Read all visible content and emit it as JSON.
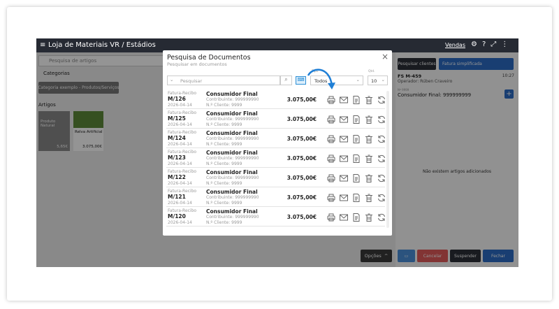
{
  "header": {
    "title": "Loja de Materiais VR / Estádios",
    "menu_active": "Vendas"
  },
  "left_panel": {
    "search_placeholder": "Pesquisa de artigos",
    "categories_label": "Categorias",
    "category": "Categoria exemplo - Produtos/Serviços",
    "articles_label": "Artigos",
    "articles": [
      {
        "name": "Produto Natural",
        "price": "5,65€"
      },
      {
        "name": "Relva Artificial",
        "price": "3.075,00€"
      }
    ]
  },
  "right_panel": {
    "search_clients": "Pesquisar clientes",
    "doc_type": "Fatura simplificada",
    "doc_number": "FS M-459",
    "time": "10:27",
    "operator": "Operador: Rúben Craveiro",
    "client_label": "Nº 9999",
    "client": "Consumidor Final: 999999999",
    "empty": "Não existem artigos adicionados",
    "cancel": "Cancelar",
    "suspend": "Suspender",
    "close": "Fechar"
  },
  "options_button": "Opções",
  "modal": {
    "title": "Pesquisa de Documentos",
    "subtitle": "Pesquisar em documentos",
    "search_placeholder": "Pesquisar",
    "type_label": "Tipo",
    "type_value": "Todos",
    "qty_label": "Qtd.",
    "qty_value": "10",
    "documents": [
      {
        "type": "Fatura-Recibo",
        "number": "M/126",
        "date": "2026-04-14",
        "customer": "Consumidor Final",
        "tax_id": "Contribuinte: 999999990",
        "client_no": "N.º Cliente: 9999",
        "amount": "3.075,00€"
      },
      {
        "type": "Fatura-Recibo",
        "number": "M/125",
        "date": "2026-04-14",
        "customer": "Consumidor Final",
        "tax_id": "Contribuinte: 999999990",
        "client_no": "N.º Cliente: 9999",
        "amount": "3.075,00€"
      },
      {
        "type": "Fatura-Recibo",
        "number": "M/124",
        "date": "2026-04-14",
        "customer": "Consumidor Final",
        "tax_id": "Contribuinte: 999999990",
        "client_no": "N.º Cliente: 9999",
        "amount": "3.075,00€"
      },
      {
        "type": "Fatura-Recibo",
        "number": "M/123",
        "date": "2026-04-14",
        "customer": "Consumidor Final",
        "tax_id": "Contribuinte: 999999990",
        "client_no": "N.º Cliente: 9999",
        "amount": "3.075,00€"
      },
      {
        "type": "Fatura-Recibo",
        "number": "M/122",
        "date": "2026-04-14",
        "customer": "Consumidor Final",
        "tax_id": "Contribuinte: 999999990",
        "client_no": "N.º Cliente: 9999",
        "amount": "3.075,00€"
      },
      {
        "type": "Fatura-Recibo",
        "number": "M/121",
        "date": "2026-04-14",
        "customer": "Consumidor Final",
        "tax_id": "Contribuinte: 999999990",
        "client_no": "N.º Cliente: 9999",
        "amount": "3.075,00€"
      },
      {
        "type": "Fatura-Recibo",
        "number": "M/120",
        "date": "2026-04-14",
        "customer": "Consumidor Final",
        "tax_id": "Contribuinte: 999999990",
        "client_no": "N.º Cliente: 9999",
        "amount": "3.075,00€"
      }
    ]
  }
}
